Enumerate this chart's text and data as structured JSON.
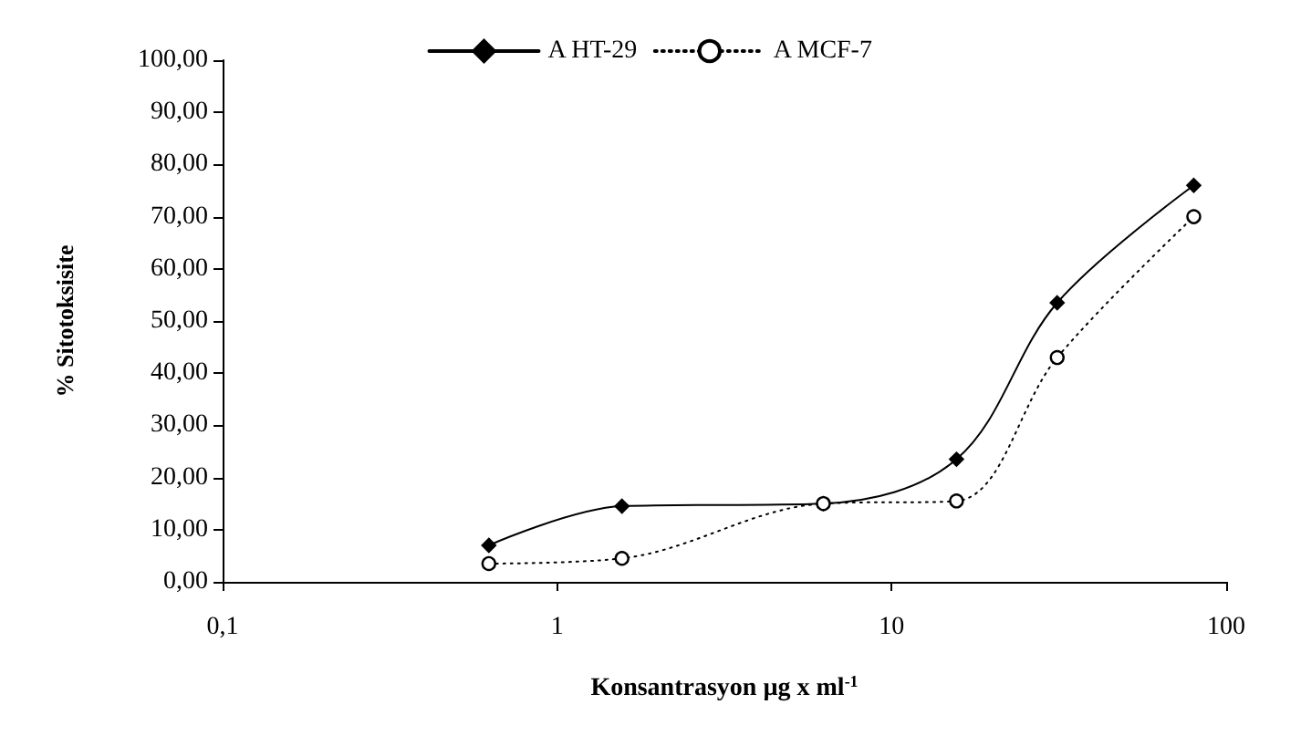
{
  "chart_data": {
    "type": "line",
    "xlabel": "Konsantrasyon µg x ml$^{-1}$",
    "ylabel": "% Sitotoksisite",
    "x": [
      0.625,
      1.5625,
      6.25,
      15.625,
      31.25,
      80
    ],
    "series": [
      {
        "name": "A HT-29",
        "color": "#000000",
        "marker": "diamond",
        "line_style": "solid",
        "values": [
          7,
          14.5,
          15,
          23.5,
          53.5,
          76
        ]
      },
      {
        "name": "A MCF-7",
        "color": "#000000",
        "marker": "circle",
        "line_style": "dotted",
        "values": [
          3.5,
          4.5,
          15,
          15.5,
          43,
          70
        ]
      }
    ],
    "log": "x",
    "xlim": [
      0.1,
      100
    ],
    "xticks": [
      {
        "value": 0.1,
        "label": "0,1"
      },
      1,
      10,
      100
    ],
    "ylim": [
      0,
      100
    ],
    "yticks": [
      {
        "value": 0,
        "label": "0,00"
      },
      {
        "value": 10,
        "label": "10,00"
      },
      {
        "value": 20,
        "label": "20,00"
      },
      {
        "value": 30,
        "label": "30,00"
      },
      {
        "value": 40,
        "label": "40,00"
      },
      {
        "value": 50,
        "label": "50,00"
      },
      {
        "value": 60,
        "label": "60,00"
      },
      {
        "value": 70,
        "label": "70,00"
      },
      {
        "value": 80,
        "label": "80,00"
      },
      {
        "value": 90,
        "label": "90,00"
      },
      {
        "value": 100,
        "label": "100,00"
      }
    ],
    "grid": false,
    "legend": "top"
  }
}
